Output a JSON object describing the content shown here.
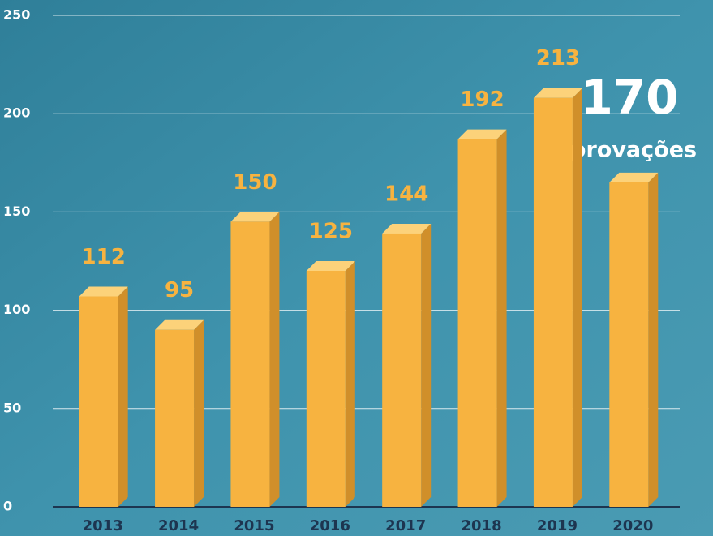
{
  "chart_data": {
    "type": "bar",
    "categories": [
      "2013",
      "2014",
      "2015",
      "2016",
      "2017",
      "2018",
      "2019",
      "2020"
    ],
    "values": [
      112,
      95,
      150,
      125,
      144,
      192,
      213,
      170
    ],
    "color": "#f7b340",
    "ylim": [
      0,
      250
    ],
    "yticks": [
      0,
      50,
      100,
      150,
      200,
      250
    ],
    "grid": true,
    "annotation": "aprovações"
  }
}
